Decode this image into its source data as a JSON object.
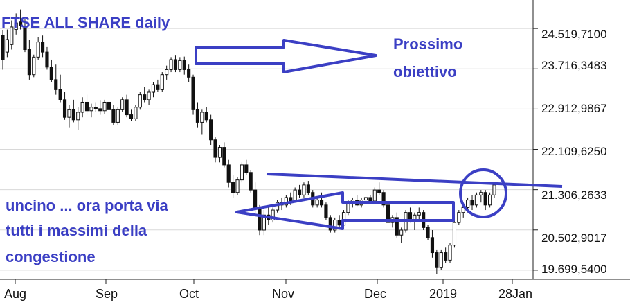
{
  "chart_data": {
    "type": "candlestick",
    "title": "FTSE ALL SHARE  daily",
    "y_ticks": [
      "24.519,7100",
      "23.716,3483",
      "22.912,9867",
      "22.109,6250",
      "21.306,2633",
      "20.502,9017",
      "19.699,5400"
    ],
    "y_tick_values": [
      24519.71,
      23716.3483,
      22912.9867,
      22109.625,
      21306.2633,
      20502.9017,
      19699.54
    ],
    "ylim": [
      19560,
      24950
    ],
    "x_ticks": [
      "Aug",
      "Sep",
      "Oct",
      "Nov",
      "Dec",
      "2019",
      "28Jan"
    ],
    "grid": true,
    "annotations": {
      "target": [
        "Prossimo",
        "obiettivo"
      ],
      "hook": [
        "uncino ... ora porta via",
        "tutti i massimi della",
        "congestione"
      ]
    },
    "colors": {
      "annotation": "#3b3fc4",
      "candle": "#111111",
      "grid": "#d8d8d8",
      "axis": "#222222"
    },
    "candles": [
      {
        "o": 24380,
        "h": 24480,
        "l": 23700,
        "c": 23900
      },
      {
        "o": 24050,
        "h": 24500,
        "l": 23950,
        "c": 24300
      },
      {
        "o": 24200,
        "h": 24680,
        "l": 24100,
        "c": 24550
      },
      {
        "o": 24500,
        "h": 24820,
        "l": 24400,
        "c": 24630
      },
      {
        "o": 24650,
        "h": 24900,
        "l": 24500,
        "c": 24580
      },
      {
        "o": 24560,
        "h": 24700,
        "l": 24050,
        "c": 24100
      },
      {
        "o": 24100,
        "h": 24300,
        "l": 23500,
        "c": 23600
      },
      {
        "o": 23600,
        "h": 24000,
        "l": 23550,
        "c": 23950
      },
      {
        "o": 23950,
        "h": 24350,
        "l": 23900,
        "c": 24250
      },
      {
        "o": 24250,
        "h": 24380,
        "l": 23950,
        "c": 24050
      },
      {
        "o": 24050,
        "h": 24150,
        "l": 23700,
        "c": 23750
      },
      {
        "o": 23750,
        "h": 23900,
        "l": 23450,
        "c": 23500
      },
      {
        "o": 23500,
        "h": 23800,
        "l": 23200,
        "c": 23300
      },
      {
        "o": 23300,
        "h": 23600,
        "l": 23050,
        "c": 23100
      },
      {
        "o": 23100,
        "h": 23250,
        "l": 22700,
        "c": 22750
      },
      {
        "o": 22750,
        "h": 23000,
        "l": 22550,
        "c": 22900
      },
      {
        "o": 22900,
        "h": 23100,
        "l": 22650,
        "c": 22700
      },
      {
        "o": 22700,
        "h": 22950,
        "l": 22500,
        "c": 22850
      },
      {
        "o": 22850,
        "h": 23150,
        "l": 22750,
        "c": 23050
      },
      {
        "o": 23050,
        "h": 23200,
        "l": 22800,
        "c": 22880
      },
      {
        "o": 22880,
        "h": 23020,
        "l": 22750,
        "c": 22950
      },
      {
        "o": 22950,
        "h": 23050,
        "l": 22850,
        "c": 22920
      },
      {
        "o": 22920,
        "h": 23080,
        "l": 22800,
        "c": 22880
      },
      {
        "o": 22880,
        "h": 23100,
        "l": 22820,
        "c": 23050
      },
      {
        "o": 23050,
        "h": 23120,
        "l": 22850,
        "c": 22900
      },
      {
        "o": 22900,
        "h": 23000,
        "l": 22600,
        "c": 22650
      },
      {
        "o": 22650,
        "h": 22950,
        "l": 22600,
        "c": 22900
      },
      {
        "o": 22900,
        "h": 23150,
        "l": 22850,
        "c": 23100
      },
      {
        "o": 23100,
        "h": 23200,
        "l": 22750,
        "c": 22800
      },
      {
        "o": 22800,
        "h": 22900,
        "l": 22680,
        "c": 22720
      },
      {
        "o": 22720,
        "h": 23000,
        "l": 22680,
        "c": 22950
      },
      {
        "o": 22950,
        "h": 23250,
        "l": 22900,
        "c": 23200
      },
      {
        "o": 23200,
        "h": 23350,
        "l": 23050,
        "c": 23100
      },
      {
        "o": 23100,
        "h": 23300,
        "l": 23000,
        "c": 23250
      },
      {
        "o": 23250,
        "h": 23450,
        "l": 23150,
        "c": 23400
      },
      {
        "o": 23400,
        "h": 23500,
        "l": 23250,
        "c": 23300
      },
      {
        "o": 23300,
        "h": 23650,
        "l": 23250,
        "c": 23600
      },
      {
        "o": 23600,
        "h": 23780,
        "l": 23500,
        "c": 23700
      },
      {
        "o": 23700,
        "h": 23950,
        "l": 23650,
        "c": 23900
      },
      {
        "o": 23900,
        "h": 23980,
        "l": 23650,
        "c": 23700
      },
      {
        "o": 23700,
        "h": 23950,
        "l": 23650,
        "c": 23880
      },
      {
        "o": 23880,
        "h": 23960,
        "l": 23600,
        "c": 23700
      },
      {
        "o": 23700,
        "h": 23800,
        "l": 23450,
        "c": 23550
      },
      {
        "o": 23550,
        "h": 23600,
        "l": 22800,
        "c": 22900
      },
      {
        "o": 22900,
        "h": 23050,
        "l": 22550,
        "c": 22650
      },
      {
        "o": 22650,
        "h": 22900,
        "l": 22400,
        "c": 22850
      },
      {
        "o": 22850,
        "h": 22950,
        "l": 22650,
        "c": 22700
      },
      {
        "o": 22700,
        "h": 22800,
        "l": 22200,
        "c": 22300
      },
      {
        "o": 22300,
        "h": 22350,
        "l": 21850,
        "c": 21950
      },
      {
        "o": 21950,
        "h": 22200,
        "l": 21850,
        "c": 22150
      },
      {
        "o": 22150,
        "h": 22250,
        "l": 21750,
        "c": 21800
      },
      {
        "o": 21800,
        "h": 21900,
        "l": 21350,
        "c": 21450
      },
      {
        "o": 21450,
        "h": 21600,
        "l": 21150,
        "c": 21250
      },
      {
        "o": 21250,
        "h": 21550,
        "l": 21200,
        "c": 21500
      },
      {
        "o": 21500,
        "h": 21850,
        "l": 21450,
        "c": 21800
      },
      {
        "o": 21800,
        "h": 21900,
        "l": 21600,
        "c": 21650
      },
      {
        "o": 21650,
        "h": 21700,
        "l": 21250,
        "c": 21300
      },
      {
        "o": 21300,
        "h": 21450,
        "l": 20850,
        "c": 20950
      },
      {
        "o": 20950,
        "h": 21000,
        "l": 20400,
        "c": 20500
      },
      {
        "o": 20500,
        "h": 20900,
        "l": 20400,
        "c": 20800
      },
      {
        "o": 20800,
        "h": 20950,
        "l": 20600,
        "c": 20700
      },
      {
        "o": 20700,
        "h": 20950,
        "l": 20650,
        "c": 20900
      },
      {
        "o": 20900,
        "h": 21100,
        "l": 20850,
        "c": 21050
      },
      {
        "o": 21050,
        "h": 21150,
        "l": 20900,
        "c": 21000
      },
      {
        "o": 21000,
        "h": 21200,
        "l": 20950,
        "c": 21150
      },
      {
        "o": 21150,
        "h": 21250,
        "l": 21000,
        "c": 21080
      },
      {
        "o": 21080,
        "h": 21350,
        "l": 21050,
        "c": 21300
      },
      {
        "o": 21300,
        "h": 21400,
        "l": 21150,
        "c": 21200
      },
      {
        "o": 21200,
        "h": 21450,
        "l": 21150,
        "c": 21400
      },
      {
        "o": 21400,
        "h": 21480,
        "l": 21200,
        "c": 21250
      },
      {
        "o": 21250,
        "h": 21300,
        "l": 20950,
        "c": 21000
      },
      {
        "o": 21000,
        "h": 21150,
        "l": 20950,
        "c": 21100
      },
      {
        "o": 21100,
        "h": 21250,
        "l": 20950,
        "c": 21000
      },
      {
        "o": 21000,
        "h": 21050,
        "l": 20700,
        "c": 20750
      },
      {
        "o": 20750,
        "h": 20800,
        "l": 20450,
        "c": 20500
      },
      {
        "o": 20500,
        "h": 20750,
        "l": 20450,
        "c": 20700
      },
      {
        "o": 20700,
        "h": 20800,
        "l": 20550,
        "c": 20600
      },
      {
        "o": 20600,
        "h": 20900,
        "l": 20550,
        "c": 20850
      },
      {
        "o": 20850,
        "h": 21100,
        "l": 20800,
        "c": 21050
      },
      {
        "o": 21050,
        "h": 21150,
        "l": 20950,
        "c": 21100
      },
      {
        "o": 21100,
        "h": 21200,
        "l": 20980,
        "c": 21000
      },
      {
        "o": 21000,
        "h": 21150,
        "l": 20950,
        "c": 21100
      },
      {
        "o": 21100,
        "h": 21220,
        "l": 21000,
        "c": 21150
      },
      {
        "o": 21150,
        "h": 21200,
        "l": 21050,
        "c": 21080
      },
      {
        "o": 21080,
        "h": 21350,
        "l": 21050,
        "c": 21300
      },
      {
        "o": 21300,
        "h": 21450,
        "l": 21200,
        "c": 21250
      },
      {
        "o": 21250,
        "h": 21300,
        "l": 20950,
        "c": 21000
      },
      {
        "o": 21000,
        "h": 21050,
        "l": 20600,
        "c": 20650
      },
      {
        "o": 20650,
        "h": 20800,
        "l": 20550,
        "c": 20750
      },
      {
        "o": 20750,
        "h": 20850,
        "l": 20350,
        "c": 20400
      },
      {
        "o": 20400,
        "h": 20550,
        "l": 20250,
        "c": 20500
      },
      {
        "o": 20500,
        "h": 20900,
        "l": 20450,
        "c": 20850
      },
      {
        "o": 20850,
        "h": 20950,
        "l": 20650,
        "c": 20700
      },
      {
        "o": 20700,
        "h": 20850,
        "l": 20500,
        "c": 20800
      },
      {
        "o": 20800,
        "h": 20950,
        "l": 20700,
        "c": 20850
      },
      {
        "o": 20850,
        "h": 20900,
        "l": 20500,
        "c": 20550
      },
      {
        "o": 20550,
        "h": 20600,
        "l": 20300,
        "c": 20350
      },
      {
        "o": 20350,
        "h": 20500,
        "l": 19950,
        "c": 20050
      },
      {
        "o": 20050,
        "h": 20100,
        "l": 19620,
        "c": 19750
      },
      {
        "o": 19750,
        "h": 20100,
        "l": 19700,
        "c": 20050
      },
      {
        "o": 20050,
        "h": 20150,
        "l": 19850,
        "c": 19900
      },
      {
        "o": 19900,
        "h": 20250,
        "l": 19850,
        "c": 20200
      },
      {
        "o": 20200,
        "h": 20700,
        "l": 20150,
        "c": 20650
      },
      {
        "o": 20650,
        "h": 20900,
        "l": 20600,
        "c": 20850
      },
      {
        "o": 20850,
        "h": 21000,
        "l": 20750,
        "c": 20950
      },
      {
        "o": 20950,
        "h": 21150,
        "l": 20850,
        "c": 21100
      },
      {
        "o": 21100,
        "h": 21200,
        "l": 20900,
        "c": 21000
      },
      {
        "o": 21000,
        "h": 21250,
        "l": 20950,
        "c": 21200
      },
      {
        "o": 21200,
        "h": 21300,
        "l": 21050,
        "c": 21250
      },
      {
        "o": 21250,
        "h": 21300,
        "l": 20900,
        "c": 21000
      },
      {
        "o": 21000,
        "h": 21250,
        "l": 20950,
        "c": 21200
      },
      {
        "o": 21200,
        "h": 21450,
        "l": 21150,
        "c": 21400
      }
    ]
  }
}
